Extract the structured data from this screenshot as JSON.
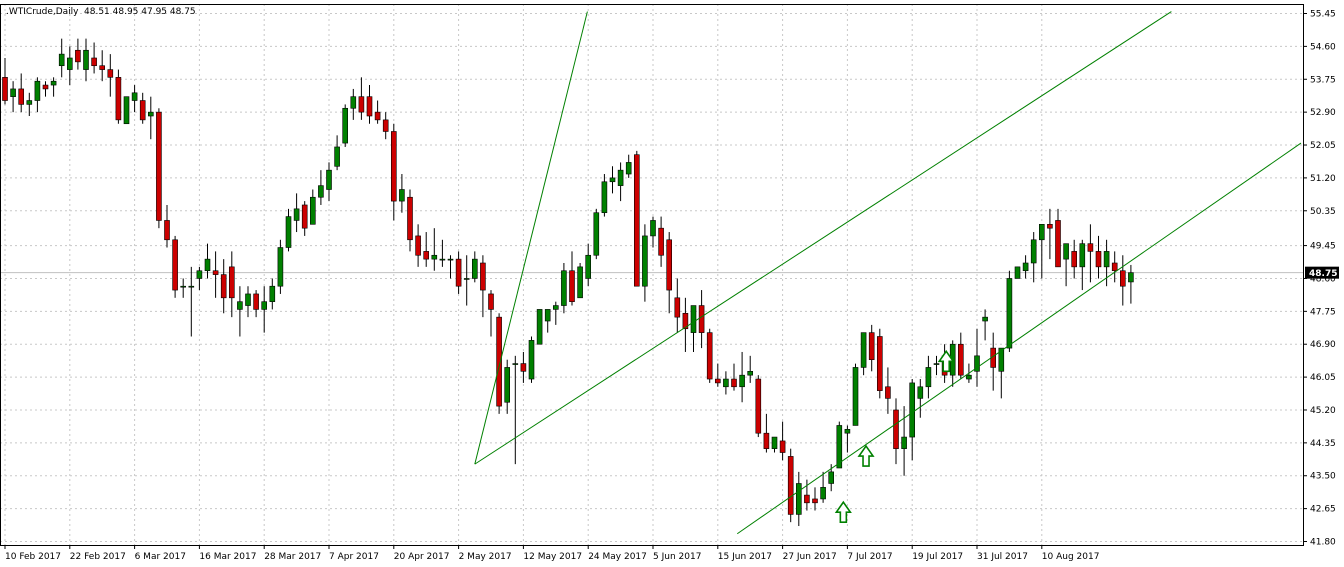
{
  "header": {
    "symbol": ".WTICrude,Daily",
    "ohlc": "48.51 48.95 47.95 48.75"
  },
  "chart_data": {
    "type": "candlestick",
    "symbol": ".WTICrude",
    "timeframe": "Daily",
    "ylim": [
      41.8,
      55.5
    ],
    "grid": true,
    "y_ticks": [
      "55.45",
      "54.60",
      "53.75",
      "52.90",
      "52.05",
      "51.20",
      "50.35",
      "49.45",
      "48.60",
      "47.75",
      "46.90",
      "46.05",
      "45.20",
      "44.35",
      "43.50",
      "42.65",
      "41.80"
    ],
    "current_price": "48.75",
    "x_ticks": [
      {
        "label": "10 Feb 2017",
        "index": 0
      },
      {
        "label": "22 Feb 2017",
        "index": 8
      },
      {
        "label": "6 Mar 2017",
        "index": 16
      },
      {
        "label": "16 Mar 2017",
        "index": 24
      },
      {
        "label": "28 Mar 2017",
        "index": 32
      },
      {
        "label": "7 Apr 2017",
        "index": 40
      },
      {
        "label": "20 Apr 2017",
        "index": 48
      },
      {
        "label": "2 May 2017",
        "index": 56
      },
      {
        "label": "12 May 2017",
        "index": 64
      },
      {
        "label": "24 May 2017",
        "index": 72
      },
      {
        "label": "5 Jun 2017",
        "index": 80
      },
      {
        "label": "15 Jun 2017",
        "index": 88
      },
      {
        "label": "27 Jun 2017",
        "index": 96
      },
      {
        "label": "7 Jul 2017",
        "index": 104
      },
      {
        "label": "19 Jul 2017",
        "index": 112
      },
      {
        "label": "31 Jul 2017",
        "index": 120
      },
      {
        "label": "10 Aug 2017",
        "index": 128
      }
    ],
    "candles": [
      [
        53.8,
        54.3,
        53.1,
        53.2
      ],
      [
        53.3,
        53.7,
        52.9,
        53.5
      ],
      [
        53.5,
        53.9,
        52.9,
        53.1
      ],
      [
        53.1,
        53.4,
        52.8,
        53.2
      ],
      [
        53.2,
        53.8,
        52.9,
        53.7
      ],
      [
        53.6,
        53.7,
        53.3,
        53.5
      ],
      [
        53.6,
        53.8,
        53.3,
        53.7
      ],
      [
        54.1,
        54.8,
        53.8,
        54.4
      ],
      [
        54.0,
        54.6,
        53.6,
        54.3
      ],
      [
        54.5,
        54.8,
        54.0,
        54.2
      ],
      [
        54.0,
        54.8,
        53.7,
        54.5
      ],
      [
        54.3,
        54.7,
        53.9,
        54.1
      ],
      [
        54.1,
        54.5,
        53.7,
        54.0
      ],
      [
        54.0,
        54.4,
        53.3,
        53.8
      ],
      [
        53.8,
        54.0,
        52.6,
        52.7
      ],
      [
        52.6,
        53.3,
        52.6,
        53.3
      ],
      [
        53.2,
        53.6,
        52.9,
        53.4
      ],
      [
        53.2,
        53.4,
        52.6,
        52.7
      ],
      [
        52.8,
        53.3,
        52.2,
        52.9
      ],
      [
        52.9,
        53.0,
        49.9,
        50.1
      ],
      [
        50.1,
        50.5,
        49.4,
        49.6
      ],
      [
        49.6,
        49.7,
        48.1,
        48.3
      ],
      [
        48.4,
        48.6,
        48.1,
        48.4
      ],
      [
        48.4,
        48.9,
        47.1,
        48.4
      ],
      [
        48.6,
        48.9,
        48.3,
        48.8
      ],
      [
        48.8,
        49.5,
        48.6,
        49.1
      ],
      [
        48.8,
        49.3,
        48.1,
        48.7
      ],
      [
        48.7,
        49.1,
        47.7,
        48.1
      ],
      [
        48.9,
        49.3,
        47.6,
        48.1
      ],
      [
        47.8,
        48.4,
        47.1,
        48.0
      ],
      [
        47.9,
        48.4,
        47.6,
        48.2
      ],
      [
        48.2,
        48.3,
        47.6,
        47.8
      ],
      [
        47.8,
        48.4,
        47.2,
        48.0
      ],
      [
        48.0,
        48.6,
        47.8,
        48.4
      ],
      [
        48.4,
        49.6,
        48.2,
        49.4
      ],
      [
        49.4,
        50.4,
        49.3,
        50.2
      ],
      [
        50.1,
        50.8,
        49.8,
        50.4
      ],
      [
        50.5,
        50.6,
        49.7,
        49.9
      ],
      [
        50.0,
        50.9,
        50.0,
        50.7
      ],
      [
        50.7,
        51.4,
        50.5,
        51.0
      ],
      [
        50.9,
        51.6,
        50.6,
        51.4
      ],
      [
        51.5,
        52.3,
        51.4,
        52.0
      ],
      [
        52.1,
        53.1,
        52.0,
        53.0
      ],
      [
        53.0,
        53.5,
        52.7,
        53.3
      ],
      [
        53.3,
        53.8,
        52.7,
        52.9
      ],
      [
        53.3,
        53.6,
        52.6,
        52.8
      ],
      [
        52.9,
        53.2,
        52.6,
        52.7
      ],
      [
        52.7,
        52.9,
        52.2,
        52.4
      ],
      [
        52.4,
        52.6,
        50.1,
        50.6
      ],
      [
        50.6,
        51.3,
        50.3,
        50.9
      ],
      [
        50.7,
        50.9,
        49.3,
        49.6
      ],
      [
        49.7,
        50.0,
        48.9,
        49.2
      ],
      [
        49.3,
        49.8,
        48.9,
        49.1
      ],
      [
        49.1,
        49.9,
        48.8,
        49.2
      ],
      [
        49.1,
        49.6,
        48.9,
        49.1
      ],
      [
        49.1,
        49.2,
        48.6,
        49.1
      ],
      [
        49.1,
        49.3,
        48.2,
        48.4
      ],
      [
        48.6,
        49.2,
        47.9,
        48.6
      ],
      [
        48.6,
        49.3,
        48.5,
        49.1
      ],
      [
        49.0,
        49.2,
        47.6,
        48.3
      ],
      [
        48.2,
        48.3,
        47.1,
        47.8
      ],
      [
        47.6,
        47.7,
        45.1,
        45.3
      ],
      [
        45.4,
        46.5,
        45.1,
        46.3
      ],
      [
        46.4,
        46.6,
        43.8,
        46.4
      ],
      [
        46.4,
        46.7,
        45.9,
        46.2
      ],
      [
        46.0,
        47.1,
        45.9,
        47.0
      ],
      [
        46.9,
        47.8,
        46.9,
        47.8
      ],
      [
        47.5,
        47.8,
        47.2,
        47.8
      ],
      [
        47.8,
        48.0,
        47.4,
        47.9
      ],
      [
        47.9,
        49.0,
        47.7,
        48.8
      ],
      [
        48.8,
        49.3,
        47.9,
        48.0
      ],
      [
        48.1,
        49.0,
        48.1,
        48.9
      ],
      [
        48.6,
        49.5,
        48.4,
        49.2
      ],
      [
        49.2,
        50.4,
        49.1,
        50.3
      ],
      [
        50.3,
        51.3,
        50.2,
        51.1
      ],
      [
        51.1,
        51.5,
        50.8,
        51.2
      ],
      [
        51.0,
        51.6,
        50.6,
        51.4
      ],
      [
        51.3,
        51.8,
        51.2,
        51.6
      ],
      [
        51.8,
        51.9,
        48.4,
        48.4
      ],
      [
        48.4,
        50.0,
        48.0,
        49.7
      ],
      [
        49.7,
        50.2,
        49.4,
        50.1
      ],
      [
        49.9,
        50.2,
        48.9,
        49.2
      ],
      [
        49.6,
        49.8,
        47.7,
        48.3
      ],
      [
        48.1,
        48.6,
        47.2,
        47.6
      ],
      [
        47.7,
        48.1,
        46.7,
        47.3
      ],
      [
        47.2,
        47.9,
        46.7,
        47.9
      ],
      [
        47.9,
        48.3,
        46.8,
        47.2
      ],
      [
        47.2,
        47.3,
        45.9,
        46.0
      ],
      [
        46.0,
        46.4,
        45.8,
        45.9
      ],
      [
        45.8,
        46.2,
        45.6,
        46.0
      ],
      [
        46.0,
        46.4,
        45.7,
        45.8
      ],
      [
        45.8,
        46.7,
        45.4,
        46.1
      ],
      [
        46.1,
        46.6,
        45.9,
        46.2
      ],
      [
        46.0,
        46.1,
        44.5,
        44.6
      ],
      [
        44.6,
        45.1,
        44.1,
        44.2
      ],
      [
        44.2,
        44.4,
        44.1,
        44.5
      ],
      [
        44.4,
        44.9,
        43.9,
        44.1
      ],
      [
        44.0,
        44.2,
        42.3,
        42.5
      ],
      [
        42.5,
        43.6,
        42.2,
        43.3
      ],
      [
        43.0,
        43.4,
        42.6,
        42.8
      ],
      [
        42.9,
        43.2,
        42.6,
        42.8
      ],
      [
        42.9,
        43.6,
        42.8,
        43.2
      ],
      [
        43.3,
        43.8,
        43.1,
        43.6
      ],
      [
        43.7,
        44.9,
        43.7,
        44.8
      ],
      [
        44.6,
        44.8,
        44.1,
        44.7
      ],
      [
        44.8,
        46.4,
        44.8,
        46.3
      ],
      [
        46.3,
        47.2,
        46.1,
        47.2
      ],
      [
        47.2,
        47.4,
        46.2,
        46.5
      ],
      [
        47.1,
        47.3,
        45.5,
        45.7
      ],
      [
        45.8,
        46.3,
        45.1,
        45.5
      ],
      [
        45.2,
        45.5,
        43.8,
        44.2
      ],
      [
        44.2,
        45.3,
        43.5,
        44.5
      ],
      [
        44.5,
        46.0,
        43.9,
        45.9
      ],
      [
        45.5,
        46.0,
        45.0,
        45.8
      ],
      [
        45.8,
        46.6,
        45.5,
        46.3
      ],
      [
        46.4,
        46.6,
        46.1,
        46.4
      ],
      [
        46.6,
        46.9,
        45.9,
        46.1
      ],
      [
        46.1,
        47.0,
        45.8,
        46.9
      ],
      [
        46.9,
        47.2,
        46.0,
        46.1
      ],
      [
        46.0,
        46.4,
        45.9,
        46.1
      ],
      [
        46.2,
        47.3,
        45.8,
        46.6
      ],
      [
        47.5,
        47.8,
        47.0,
        47.6
      ],
      [
        46.8,
        47.2,
        45.7,
        46.3
      ],
      [
        46.2,
        46.7,
        45.5,
        46.8
      ],
      [
        46.8,
        48.8,
        46.7,
        48.6
      ],
      [
        48.6,
        48.9,
        48.6,
        48.9
      ],
      [
        48.8,
        49.2,
        48.6,
        49.0
      ],
      [
        49.0,
        49.8,
        48.5,
        49.6
      ],
      [
        49.6,
        50.0,
        48.6,
        50.0
      ],
      [
        50.0,
        50.4,
        49.1,
        49.9
      ],
      [
        50.1,
        50.4,
        48.9,
        48.9
      ],
      [
        49.1,
        49.5,
        48.4,
        49.5
      ],
      [
        49.3,
        49.6,
        48.6,
        48.9
      ],
      [
        48.9,
        49.6,
        48.3,
        49.5
      ],
      [
        49.5,
        50.0,
        48.5,
        49.3
      ],
      [
        49.3,
        49.7,
        48.6,
        48.9
      ],
      [
        48.9,
        49.6,
        48.4,
        49.3
      ],
      [
        49.0,
        49.3,
        48.5,
        48.8
      ],
      [
        48.8,
        49.2,
        47.9,
        48.4
      ],
      [
        48.51,
        48.95,
        47.95,
        48.75
      ]
    ]
  },
  "overlay": {
    "price_line_color": "#c0c0c0",
    "channel_color": "#008000",
    "arrow_color": "#008000",
    "bull_color": "#008000",
    "bear_color": "#cc0000"
  }
}
